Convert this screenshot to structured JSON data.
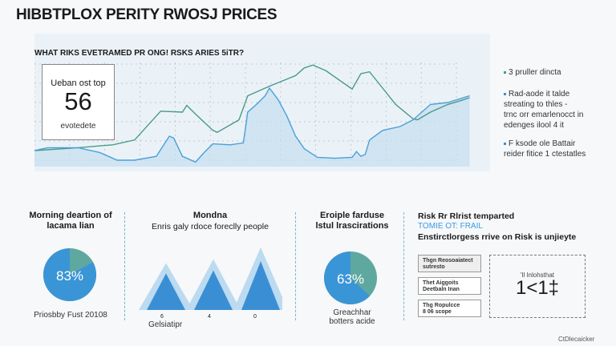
{
  "title": "HIBBTPLOX PERITY RWOSJ PRICES",
  "main_chart": {
    "subtitle": "WHAT RIKS EVETRAMED PR ONG! RSKS ARIES 5iTR?",
    "kpi": {
      "label": "Ueban ost top",
      "value": "56",
      "sub": "evotedete"
    },
    "legend": [
      {
        "text": "3 pruller dincta",
        "color": "#4a9a86"
      },
      {
        "text": "Rad-aode it talde\nstreating to thles -\ntrnc orr emarlenocct in\nedenges ilool 4 it",
        "color": "#3b8fd0"
      },
      {
        "text": "F ksode ole Battair\nreider fitice 1 ctestatles",
        "color": "#3b8fd0"
      }
    ]
  },
  "chart_data": {
    "type": "line",
    "title": "WHAT RIKS EVETRAMED PR ONG! RSKS ARIES 5iTR?",
    "ylim": [
      0,
      100
    ],
    "xlim": [
      0,
      100
    ],
    "grid": true,
    "series": [
      {
        "name": "green",
        "color": "#4a9a86",
        "points": [
          [
            0,
            10
          ],
          [
            10,
            13
          ],
          [
            18,
            16
          ],
          [
            23,
            21
          ],
          [
            29,
            51
          ],
          [
            34,
            50
          ],
          [
            35,
            57
          ],
          [
            37,
            48
          ],
          [
            41,
            31
          ],
          [
            42,
            29
          ],
          [
            47,
            42
          ],
          [
            49,
            67
          ],
          [
            53,
            75
          ],
          [
            54,
            77
          ],
          [
            60,
            88
          ],
          [
            62,
            96
          ],
          [
            64,
            99
          ],
          [
            67,
            93
          ],
          [
            73,
            74
          ],
          [
            75,
            90
          ],
          [
            77,
            92
          ],
          [
            80,
            75
          ],
          [
            83,
            58
          ],
          [
            87,
            43
          ],
          [
            88,
            42
          ],
          [
            91,
            50
          ],
          [
            95,
            58
          ],
          [
            98,
            62
          ],
          [
            100,
            65
          ]
        ]
      },
      {
        "name": "blue",
        "color": "#4aa0d8",
        "points": [
          [
            0,
            10
          ],
          [
            3,
            13
          ],
          [
            10,
            13
          ],
          [
            15,
            8
          ],
          [
            19,
            0
          ],
          [
            23,
            0
          ],
          [
            28,
            4
          ],
          [
            30,
            18
          ],
          [
            31,
            25
          ],
          [
            32,
            23
          ],
          [
            34,
            4
          ],
          [
            37,
            -2
          ],
          [
            39,
            8
          ],
          [
            41,
            17
          ],
          [
            45,
            16
          ],
          [
            48,
            18
          ],
          [
            49,
            50
          ],
          [
            51,
            58
          ],
          [
            53,
            67
          ],
          [
            54,
            75
          ],
          [
            56,
            63
          ],
          [
            58,
            46
          ],
          [
            60,
            25
          ],
          [
            62,
            12
          ],
          [
            65,
            3
          ],
          [
            69,
            2
          ],
          [
            73,
            3
          ],
          [
            74,
            9
          ],
          [
            75,
            4
          ],
          [
            76,
            6
          ],
          [
            77,
            21
          ],
          [
            80,
            31
          ],
          [
            84,
            35
          ],
          [
            87,
            42
          ],
          [
            91,
            58
          ],
          [
            95,
            60
          ],
          [
            100,
            67
          ]
        ]
      }
    ]
  },
  "panel1": {
    "title": "Morning deartion of\nlacama lian",
    "value": "83%",
    "percent": 83,
    "caption": "Priosbby Fust 20108"
  },
  "panel2": {
    "title": "Mondna",
    "subtitle": "Enris galy rdoce foreclly people",
    "peaks": [
      6,
      4,
      0
    ],
    "values": [
      60,
      65,
      80
    ],
    "xlabel": "Gelsiatipr"
  },
  "panel3": {
    "title": "Eroiple farduse\nlstul lrascirations",
    "value": "63%",
    "percent": 63,
    "caption": "Greachhar\nbotters acide"
  },
  "panel4": {
    "title": "Risk Rr Rlrist temparted",
    "highlight": "TOMIE OT: FRAIL",
    "subtitle": "Enstirctlorgess rrive on Risk is unjieyte",
    "boxes": [
      "Thgn Reosoaiatect\nsutresto",
      "Thet Aiggoits\nDeetbaln Inan",
      "Thg Ropulcce\n8 06 scope"
    ],
    "result_label": "'Il lnlohsthat",
    "result_value": "1<1‡"
  },
  "watermark": "CtDlecaicker"
}
